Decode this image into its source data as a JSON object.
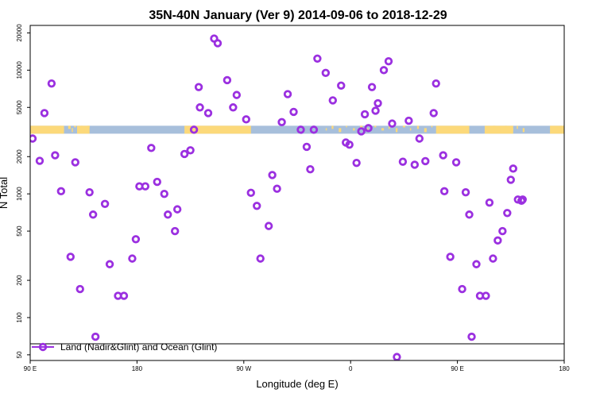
{
  "chart_data": {
    "type": "scatter",
    "title": "35N-40N January (Ver 9)   2014-09-06 to 2018-12-29",
    "xlabel": "Longitude (deg E)",
    "ylabel": "N Total",
    "y_scale": "log",
    "xlim": [
      90,
      540
    ],
    "ylim": [
      45,
      23000
    ],
    "x_ticks": [
      {
        "value": 90,
        "label": "90 E"
      },
      {
        "value": 180,
        "label": "180"
      },
      {
        "value": 270,
        "label": "90 W"
      },
      {
        "value": 360,
        "label": "0"
      },
      {
        "value": 450,
        "label": "90 E"
      },
      {
        "value": 540,
        "label": "180"
      }
    ],
    "y_ticks": [
      {
        "value": 50,
        "label": "50"
      },
      {
        "value": 100,
        "label": "100"
      },
      {
        "value": 200,
        "label": "200"
      },
      {
        "value": 500,
        "label": "500"
      },
      {
        "value": 1000,
        "label": "1000"
      },
      {
        "value": 2000,
        "label": "2000"
      },
      {
        "value": 5000,
        "label": "5000"
      },
      {
        "value": 10000,
        "label": "10000"
      },
      {
        "value": 20000,
        "label": "20000"
      }
    ],
    "land_ocean_strip": {
      "y_value": 3300,
      "ocean_color": "#a7bfdb",
      "land_color": "#fcd97a",
      "land_ranges": [
        [
          90,
          118.5
        ],
        [
          129.5,
          140
        ],
        [
          220,
          276
        ],
        [
          432,
          460
        ],
        [
          473,
          497
        ],
        [
          528,
          540
        ]
      ],
      "island_lon": [
        115,
        117,
        122,
        125,
        127,
        130,
        133,
        136,
        138,
        339,
        344,
        350,
        356,
        362,
        368,
        374,
        380,
        386,
        392,
        398,
        404,
        410,
        416,
        422,
        428,
        475,
        480,
        486,
        490,
        495,
        500,
        505
      ]
    },
    "series": [
      {
        "name": "Land (Nadir&Glint) and Ocean (Glint)",
        "color": "#9b30e0",
        "x": [
          92,
          98,
          102,
          108,
          111,
          116,
          124,
          128,
          132,
          140,
          143,
          145,
          153,
          157,
          164,
          169,
          176,
          179,
          182,
          187,
          192,
          197,
          203,
          206,
          212,
          214,
          220,
          225,
          228,
          232,
          233,
          240,
          245,
          248,
          256,
          261,
          264,
          272,
          276,
          281,
          284,
          291,
          294,
          298,
          302,
          307,
          312,
          318,
          323,
          326,
          329,
          332,
          339,
          345,
          352,
          356,
          359,
          365,
          369,
          372,
          375,
          378,
          381,
          383,
          388,
          392,
          395,
          399,
          404,
          409,
          414,
          418,
          423,
          430,
          432,
          438,
          439,
          444,
          449,
          454,
          457,
          460,
          462,
          466,
          469,
          474,
          477,
          480,
          484,
          488,
          492,
          495,
          497,
          501,
          504,
          505
        ],
        "y": [
          2800,
          1850,
          4500,
          7800,
          2050,
          1050,
          310,
          1800,
          170,
          1030,
          680,
          70,
          830,
          270,
          150,
          150,
          300,
          430,
          1150,
          1150,
          2350,
          1250,
          1000,
          680,
          500,
          750,
          2100,
          2250,
          3300,
          7300,
          5000,
          4500,
          18000,
          16500,
          8300,
          5000,
          6300,
          4000,
          1020,
          800,
          300,
          550,
          1420,
          1100,
          3800,
          6400,
          4600,
          3300,
          2400,
          1580,
          3300,
          12400,
          9500,
          5700,
          7500,
          2600,
          2500,
          1780,
          3200,
          4400,
          3400,
          7300,
          4700,
          5400,
          10000,
          11800,
          3700,
          48,
          1820,
          3900,
          1720,
          2800,
          1840,
          4500,
          7800,
          2050,
          1050,
          310,
          1800,
          170,
          1030,
          680,
          70,
          270,
          150,
          150,
          850,
          300,
          420,
          500,
          700,
          1300,
          1600,
          900,
          880,
          900
        ]
      }
    ]
  }
}
